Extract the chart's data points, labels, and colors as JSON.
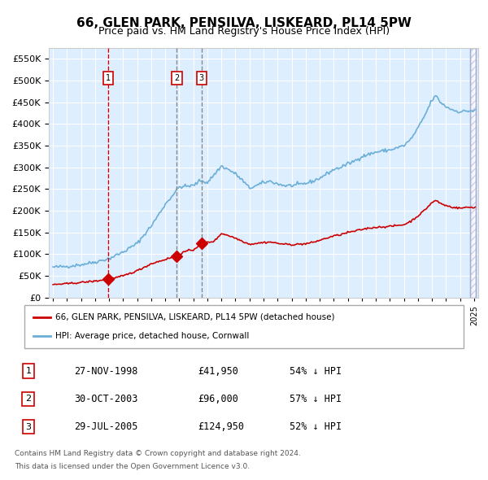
{
  "title": "66, GLEN PARK, PENSILVA, LISKEARD, PL14 5PW",
  "subtitle": "Price paid vs. HM Land Registry's House Price Index (HPI)",
  "transactions": [
    {
      "num": 1,
      "date": "1998-11-27",
      "price": 41950,
      "pct": "54% ↓ HPI"
    },
    {
      "num": 2,
      "date": "2003-10-30",
      "price": 96000,
      "pct": "57% ↓ HPI"
    },
    {
      "num": 3,
      "date": "2005-07-29",
      "price": 124950,
      "pct": "52% ↓ HPI"
    }
  ],
  "legend_entry1": "66, GLEN PARK, PENSILVA, LISKEARD, PL14 5PW (detached house)",
  "legend_entry2": "HPI: Average price, detached house, Cornwall",
  "footer1": "Contains HM Land Registry data © Crown copyright and database right 2024.",
  "footer2": "This data is licensed under the Open Government Licence v3.0.",
  "hpi_color": "#6baed6",
  "price_color": "#cc0000",
  "marker_color": "#cc0000",
  "vline1_color": "#cc0000",
  "vline23_color": "#888888",
  "bg_color": "#ddeeff",
  "hatch_color": "#aaaacc",
  "ylim": [
    0,
    575000
  ],
  "yticks": [
    0,
    50000,
    100000,
    150000,
    200000,
    250000,
    300000,
    350000,
    400000,
    450000,
    500000,
    550000
  ],
  "start_year": 1995,
  "end_year": 2025
}
